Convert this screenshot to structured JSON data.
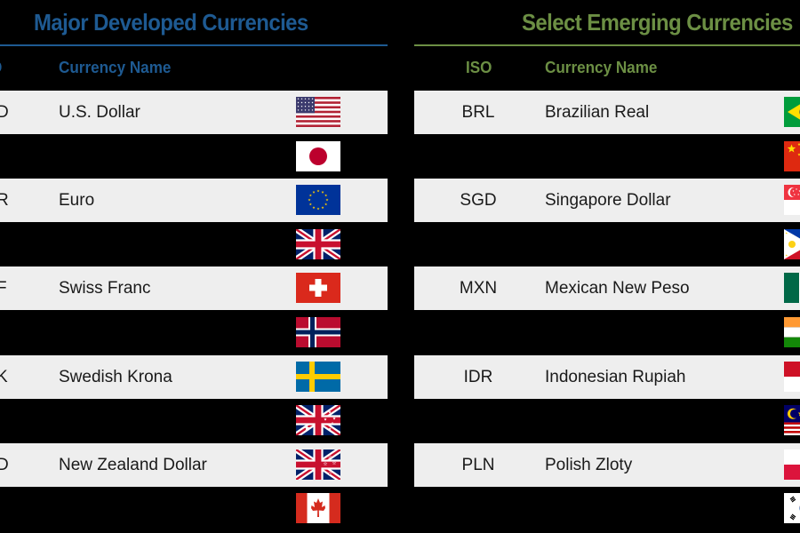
{
  "developed": {
    "title": "Major Developed Currencies",
    "headers": {
      "iso": "D",
      "name": "Currency Name"
    },
    "rows": [
      {
        "iso": "D",
        "name": "U.S. Dollar",
        "flag": "flag-us-icon",
        "shaded": true
      },
      {
        "iso": "",
        "name": "",
        "flag": "flag-japan-icon",
        "shaded": false
      },
      {
        "iso": "R",
        "name": "Euro",
        "flag": "flag-eu-icon",
        "shaded": true
      },
      {
        "iso": "",
        "name": "",
        "flag": "flag-uk-icon",
        "shaded": false
      },
      {
        "iso": "F",
        "name": "Swiss Franc",
        "flag": "flag-switzerland-icon",
        "shaded": true
      },
      {
        "iso": "",
        "name": "",
        "flag": "flag-norway-icon",
        "shaded": false
      },
      {
        "iso": "K",
        "name": "Swedish Krona",
        "flag": "flag-sweden-icon",
        "shaded": true
      },
      {
        "iso": "",
        "name": "",
        "flag": "flag-australia-icon",
        "shaded": false
      },
      {
        "iso": "D",
        "name": "New Zealand Dollar",
        "flag": "flag-new-zealand-icon",
        "shaded": true
      },
      {
        "iso": "",
        "name": "",
        "flag": "flag-canada-icon",
        "shaded": false
      }
    ]
  },
  "emerging": {
    "title": "Select Emerging Currencies",
    "headers": {
      "iso": "ISO",
      "name": "Currency Name"
    },
    "rows": [
      {
        "iso": "BRL",
        "name": "Brazilian Real",
        "flag": "flag-brazil-icon",
        "shaded": true
      },
      {
        "iso": "",
        "name": "",
        "flag": "flag-china-icon",
        "shaded": false
      },
      {
        "iso": "SGD",
        "name": "Singapore Dollar",
        "flag": "flag-singapore-icon",
        "shaded": true
      },
      {
        "iso": "",
        "name": "",
        "flag": "flag-philippines-icon",
        "shaded": false
      },
      {
        "iso": "MXN",
        "name": "Mexican New Peso",
        "flag": "flag-mexico-icon",
        "shaded": true
      },
      {
        "iso": "",
        "name": "",
        "flag": "flag-india-icon",
        "shaded": false
      },
      {
        "iso": "IDR",
        "name": "Indonesian Rupiah",
        "flag": "flag-indonesia-icon",
        "shaded": true
      },
      {
        "iso": "",
        "name": "",
        "flag": "flag-malaysia-icon",
        "shaded": false
      },
      {
        "iso": "PLN",
        "name": "Polish Zloty",
        "flag": "flag-poland-icon",
        "shaded": true
      },
      {
        "iso": "",
        "name": "",
        "flag": "flag-south-korea-icon",
        "shaded": false
      }
    ]
  },
  "colors": {
    "developed_accent": "#1e5a92",
    "emerging_accent": "#6c8f44",
    "row_shade": "#eeeeee"
  }
}
